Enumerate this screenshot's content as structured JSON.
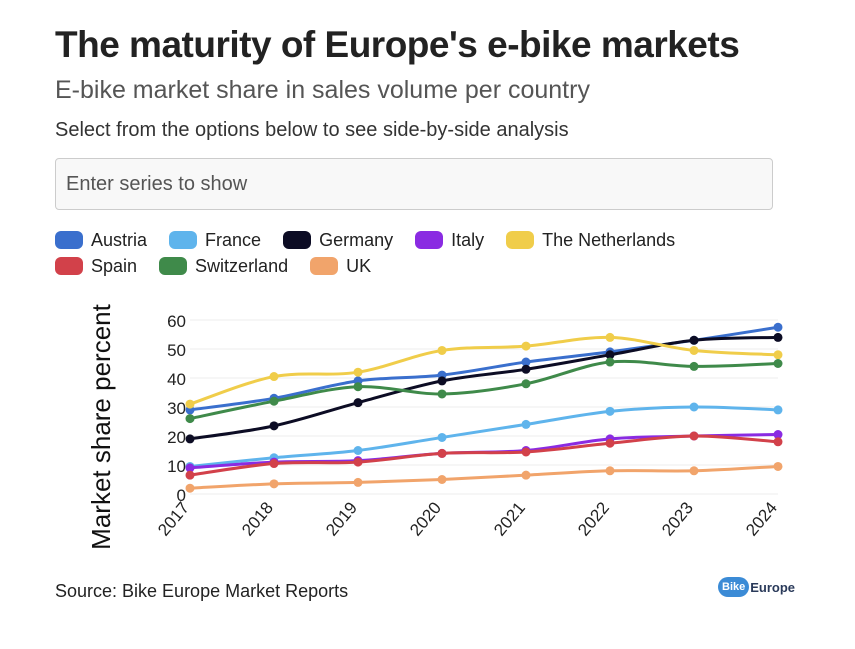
{
  "header": {
    "title": "The maturity of Europe's e-bike markets",
    "subtitle": "E-bike market share in sales volume per country",
    "instruction": "Select from the options below to see side-by-side analysis"
  },
  "search": {
    "placeholder": "Enter series to show"
  },
  "footer": {
    "source": "Source: Bike Europe Market Reports",
    "logo_bike": "Bike",
    "logo_europe": "Europe"
  },
  "chart_data": {
    "type": "line",
    "title": "E-bike market share in sales volume per country",
    "xlabel": "",
    "ylabel": "Market share percent",
    "ylim": [
      0,
      60
    ],
    "yticks": [
      0,
      10,
      20,
      30,
      40,
      50,
      60
    ],
    "grid": true,
    "legend_position": "top",
    "x": [
      "2017",
      "2018",
      "2019",
      "2020",
      "2021",
      "2022",
      "2023",
      "2024"
    ],
    "series": [
      {
        "name": "Austria",
        "color": "#3a6fcd",
        "values": [
          29,
          33,
          39,
          41,
          45.5,
          49,
          53,
          57.5
        ]
      },
      {
        "name": "France",
        "color": "#5fb4ec",
        "values": [
          9.5,
          12.5,
          15,
          19.5,
          24,
          28.5,
          30,
          29
        ]
      },
      {
        "name": "Germany",
        "color": "#0c0c24",
        "values": [
          19,
          23.5,
          31.5,
          39,
          43,
          48,
          53,
          54
        ]
      },
      {
        "name": "Italy",
        "color": "#8a2be2",
        "values": [
          9,
          11,
          11.5,
          14,
          15,
          19,
          20,
          20.5
        ]
      },
      {
        "name": "The Netherlands",
        "color": "#f0cd4a",
        "values": [
          31,
          40.5,
          42,
          49.5,
          51,
          54,
          49.5,
          48
        ]
      },
      {
        "name": "Spain",
        "color": "#d2414a",
        "values": [
          6.5,
          10.5,
          11,
          14,
          14.5,
          17.5,
          20,
          18
        ]
      },
      {
        "name": "Switzerland",
        "color": "#3f8a4a",
        "values": [
          26,
          32,
          37,
          34.5,
          38,
          45.5,
          44,
          45
        ]
      },
      {
        "name": "UK",
        "color": "#f1a46b",
        "values": [
          2,
          3.5,
          4,
          5,
          6.5,
          8,
          8,
          9.5
        ]
      }
    ]
  }
}
